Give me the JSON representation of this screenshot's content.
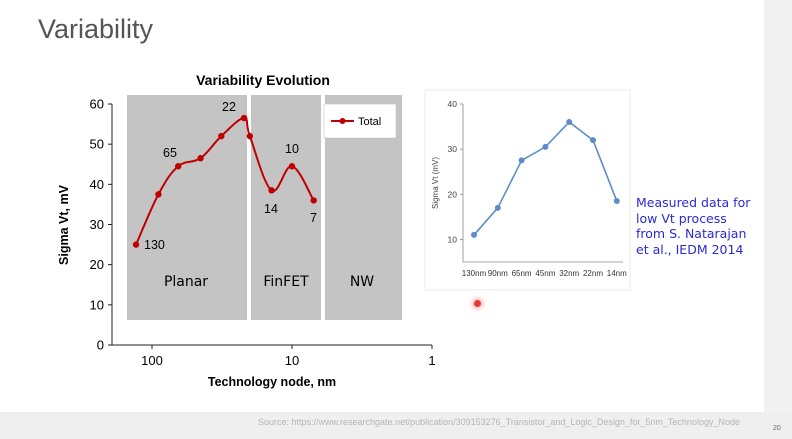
{
  "slide": {
    "title": "Variability",
    "source": "Source: https://www.researchgate.net/publication/309153276_Transistor_and_Logic_Design_for_5nm_Technology_Node",
    "page_number": "20",
    "note_lines": [
      "Measured data for",
      "low Vt process",
      "from S. Natarajan",
      "et al., IEDM 2014"
    ]
  },
  "chart_data": [
    {
      "type": "line",
      "title": "Variability Evolution",
      "xlabel": "Technology node, nm",
      "ylabel": "Sigma Vt, mV",
      "x_scale": "log",
      "x_reversed": true,
      "x_ticks": [
        "100",
        "10",
        "1"
      ],
      "y_ticks": [
        "0",
        "10",
        "20",
        "30",
        "40",
        "50",
        "60"
      ],
      "ylim": [
        0,
        60
      ],
      "legend": "top-right",
      "regions": [
        "Planar",
        "FinFET",
        "NW"
      ],
      "series": [
        {
          "name": "Total",
          "color": "#c00000",
          "x": [
            130,
            90,
            65,
            45,
            32,
            22,
            20,
            14,
            10,
            7
          ],
          "y": [
            25,
            37.5,
            44.5,
            46.5,
            52,
            56.5,
            52,
            38.5,
            44.5,
            36
          ]
        }
      ],
      "annotations": [
        "130",
        "65",
        "22",
        "14",
        "10",
        "7"
      ]
    },
    {
      "type": "line",
      "ylabel": "Sigma Vt (mV)",
      "categories": [
        "130nm",
        "90nm",
        "65nm",
        "45nm",
        "32nm",
        "22nm",
        "14nm"
      ],
      "y_ticks": [
        "10",
        "20",
        "30",
        "40"
      ],
      "ylim": [
        5,
        40
      ],
      "series": [
        {
          "color": "#5b8dc6",
          "values": [
            11,
            17,
            27.5,
            30.5,
            36,
            32,
            18.5
          ]
        }
      ]
    }
  ]
}
